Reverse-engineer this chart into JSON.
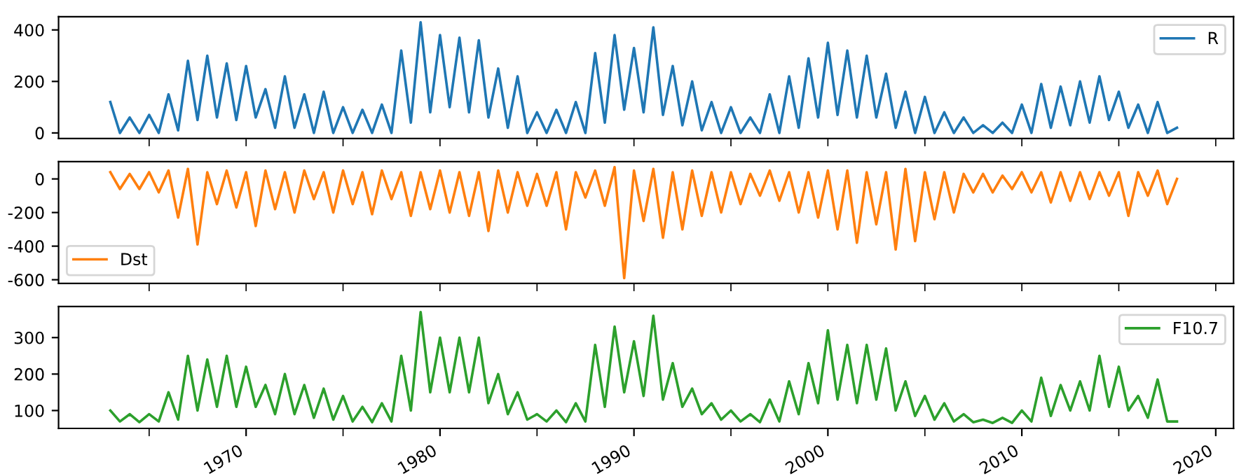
{
  "chart_data": [
    {
      "type": "line",
      "x": [
        "1963-01",
        "1963-07",
        "1964-01",
        "1964-07",
        "1965-01",
        "1965-07",
        "1966-01",
        "1966-07",
        "1967-01",
        "1967-07",
        "1968-01",
        "1968-07",
        "1969-01",
        "1969-07",
        "1970-01",
        "1970-07",
        "1971-01",
        "1971-07",
        "1972-01",
        "1972-07",
        "1973-01",
        "1973-07",
        "1974-01",
        "1974-07",
        "1975-01",
        "1975-07",
        "1976-01",
        "1976-07",
        "1977-01",
        "1977-07",
        "1978-01",
        "1978-07",
        "1979-01",
        "1979-07",
        "1980-01",
        "1980-07",
        "1981-01",
        "1981-07",
        "1982-01",
        "1982-07",
        "1983-01",
        "1983-07",
        "1984-01",
        "1984-07",
        "1985-01",
        "1985-07",
        "1986-01",
        "1986-07",
        "1987-01",
        "1987-07",
        "1988-01",
        "1988-07",
        "1989-01",
        "1989-07",
        "1990-01",
        "1990-07",
        "1991-01",
        "1991-07",
        "1992-01",
        "1992-07",
        "1993-01",
        "1993-07",
        "1994-01",
        "1994-07",
        "1995-01",
        "1995-07",
        "1996-01",
        "1996-07",
        "1997-01",
        "1997-07",
        "1998-01",
        "1998-07",
        "1999-01",
        "1999-07",
        "2000-01",
        "2000-07",
        "2001-01",
        "2001-07",
        "2002-01",
        "2002-07",
        "2003-01",
        "2003-07",
        "2004-01",
        "2004-07",
        "2005-01",
        "2005-07",
        "2006-01",
        "2006-07",
        "2007-01",
        "2007-07",
        "2008-01",
        "2008-07",
        "2009-01",
        "2009-07",
        "2010-01",
        "2010-07",
        "2011-01",
        "2011-07",
        "2012-01",
        "2012-07",
        "2013-01",
        "2013-07",
        "2014-01",
        "2014-07",
        "2015-01",
        "2015-07",
        "2016-01",
        "2016-07",
        "2017-01",
        "2017-07",
        "2018-01"
      ],
      "series": [
        {
          "name": "R",
          "color": "#1f77b4",
          "values": [
            120,
            0,
            60,
            0,
            70,
            0,
            150,
            10,
            280,
            50,
            300,
            60,
            270,
            50,
            260,
            60,
            170,
            20,
            220,
            20,
            150,
            0,
            160,
            0,
            100,
            0,
            90,
            0,
            110,
            0,
            320,
            40,
            430,
            80,
            380,
            100,
            370,
            80,
            360,
            60,
            250,
            20,
            220,
            0,
            80,
            0,
            90,
            0,
            120,
            0,
            310,
            40,
            380,
            90,
            330,
            80,
            410,
            70,
            260,
            30,
            200,
            10,
            120,
            0,
            100,
            0,
            60,
            0,
            150,
            0,
            220,
            20,
            290,
            60,
            350,
            70,
            320,
            60,
            300,
            60,
            230,
            20,
            160,
            0,
            140,
            0,
            80,
            0,
            60,
            0,
            30,
            0,
            40,
            0,
            110,
            0,
            190,
            20,
            180,
            30,
            200,
            40,
            220,
            50,
            160,
            20,
            110,
            0,
            120,
            0,
            20
          ]
        }
      ],
      "xlim": [
        "1960-05",
        "2020-12"
      ],
      "xticks": [
        {
          "value": "1965-01",
          "label": null
        },
        {
          "value": "1970-01",
          "label": null
        },
        {
          "value": "1975-01",
          "label": null
        },
        {
          "value": "1980-01",
          "label": null
        },
        {
          "value": "1985-01",
          "label": null
        },
        {
          "value": "1990-01",
          "label": null
        },
        {
          "value": "1995-01",
          "label": null
        },
        {
          "value": "2000-01",
          "label": null
        },
        {
          "value": "2005-01",
          "label": null
        },
        {
          "value": "2010-01",
          "label": null
        },
        {
          "value": "2015-01",
          "label": null
        },
        {
          "value": "2020-01",
          "label": null
        }
      ],
      "ylim": [
        -21.5,
        451.5
      ],
      "yticks": [
        0,
        200,
        400
      ],
      "legend": "top right",
      "tick_labels": "y"
    },
    {
      "type": "line",
      "x": [
        "1963-01",
        "1963-07",
        "1964-01",
        "1964-07",
        "1965-01",
        "1965-07",
        "1966-01",
        "1966-07",
        "1967-01",
        "1967-07",
        "1968-01",
        "1968-07",
        "1969-01",
        "1969-07",
        "1970-01",
        "1970-07",
        "1971-01",
        "1971-07",
        "1972-01",
        "1972-07",
        "1973-01",
        "1973-07",
        "1974-01",
        "1974-07",
        "1975-01",
        "1975-07",
        "1976-01",
        "1976-07",
        "1977-01",
        "1977-07",
        "1978-01",
        "1978-07",
        "1979-01",
        "1979-07",
        "1980-01",
        "1980-07",
        "1981-01",
        "1981-07",
        "1982-01",
        "1982-07",
        "1983-01",
        "1983-07",
        "1984-01",
        "1984-07",
        "1985-01",
        "1985-07",
        "1986-01",
        "1986-07",
        "1987-01",
        "1987-07",
        "1988-01",
        "1988-07",
        "1989-01",
        "1989-07",
        "1990-01",
        "1990-07",
        "1991-01",
        "1991-07",
        "1992-01",
        "1992-07",
        "1993-01",
        "1993-07",
        "1994-01",
        "1994-07",
        "1995-01",
        "1995-07",
        "1996-01",
        "1996-07",
        "1997-01",
        "1997-07",
        "1998-01",
        "1998-07",
        "1999-01",
        "1999-07",
        "2000-01",
        "2000-07",
        "2001-01",
        "2001-07",
        "2002-01",
        "2002-07",
        "2003-01",
        "2003-07",
        "2004-01",
        "2004-07",
        "2005-01",
        "2005-07",
        "2006-01",
        "2006-07",
        "2007-01",
        "2007-07",
        "2008-01",
        "2008-07",
        "2009-01",
        "2009-07",
        "2010-01",
        "2010-07",
        "2011-01",
        "2011-07",
        "2012-01",
        "2012-07",
        "2013-01",
        "2013-07",
        "2014-01",
        "2014-07",
        "2015-01",
        "2015-07",
        "2016-01",
        "2016-07",
        "2017-01",
        "2017-07",
        "2018-01"
      ],
      "series": [
        {
          "name": "Dst",
          "color": "#ff7f0e",
          "values": [
            40,
            -60,
            30,
            -60,
            40,
            -80,
            50,
            -230,
            60,
            -390,
            40,
            -150,
            50,
            -170,
            40,
            -280,
            50,
            -180,
            40,
            -200,
            50,
            -120,
            40,
            -200,
            50,
            -150,
            40,
            -210,
            50,
            -120,
            40,
            -220,
            40,
            -180,
            50,
            -200,
            40,
            -220,
            40,
            -310,
            50,
            -200,
            40,
            -160,
            30,
            -160,
            40,
            -300,
            40,
            -110,
            50,
            -160,
            70,
            -590,
            50,
            -250,
            60,
            -350,
            40,
            -300,
            50,
            -220,
            40,
            -200,
            40,
            -150,
            30,
            -100,
            50,
            -130,
            40,
            -200,
            40,
            -230,
            50,
            -300,
            50,
            -380,
            40,
            -270,
            40,
            -420,
            60,
            -370,
            40,
            -240,
            40,
            -200,
            30,
            -80,
            30,
            -80,
            20,
            -60,
            40,
            -80,
            40,
            -140,
            40,
            -130,
            40,
            -120,
            40,
            -100,
            40,
            -220,
            40,
            -100,
            50,
            -150,
            0
          ]
        }
      ],
      "xlim": [
        "1960-05",
        "2020-12"
      ],
      "xticks": [
        {
          "value": "1965-01",
          "label": null
        },
        {
          "value": "1970-01",
          "label": null
        },
        {
          "value": "1975-01",
          "label": null
        },
        {
          "value": "1980-01",
          "label": null
        },
        {
          "value": "1985-01",
          "label": null
        },
        {
          "value": "1990-01",
          "label": null
        },
        {
          "value": "1995-01",
          "label": null
        },
        {
          "value": "2000-01",
          "label": null
        },
        {
          "value": "2005-01",
          "label": null
        },
        {
          "value": "2010-01",
          "label": null
        },
        {
          "value": "2015-01",
          "label": null
        },
        {
          "value": "2020-01",
          "label": null
        }
      ],
      "ylim": [
        -622,
        103
      ],
      "yticks": [
        -600,
        -400,
        -200,
        0
      ],
      "legend": "bottom left",
      "tick_labels": "y"
    },
    {
      "type": "line",
      "x": [
        "1963-01",
        "1963-07",
        "1964-01",
        "1964-07",
        "1965-01",
        "1965-07",
        "1966-01",
        "1966-07",
        "1967-01",
        "1967-07",
        "1968-01",
        "1968-07",
        "1969-01",
        "1969-07",
        "1970-01",
        "1970-07",
        "1971-01",
        "1971-07",
        "1972-01",
        "1972-07",
        "1973-01",
        "1973-07",
        "1974-01",
        "1974-07",
        "1975-01",
        "1975-07",
        "1976-01",
        "1976-07",
        "1977-01",
        "1977-07",
        "1978-01",
        "1978-07",
        "1979-01",
        "1979-07",
        "1980-01",
        "1980-07",
        "1981-01",
        "1981-07",
        "1982-01",
        "1982-07",
        "1983-01",
        "1983-07",
        "1984-01",
        "1984-07",
        "1985-01",
        "1985-07",
        "1986-01",
        "1986-07",
        "1987-01",
        "1987-07",
        "1988-01",
        "1988-07",
        "1989-01",
        "1989-07",
        "1990-01",
        "1990-07",
        "1991-01",
        "1991-07",
        "1992-01",
        "1992-07",
        "1993-01",
        "1993-07",
        "1994-01",
        "1994-07",
        "1995-01",
        "1995-07",
        "1996-01",
        "1996-07",
        "1997-01",
        "1997-07",
        "1998-01",
        "1998-07",
        "1999-01",
        "1999-07",
        "2000-01",
        "2000-07",
        "2001-01",
        "2001-07",
        "2002-01",
        "2002-07",
        "2003-01",
        "2003-07",
        "2004-01",
        "2004-07",
        "2005-01",
        "2005-07",
        "2006-01",
        "2006-07",
        "2007-01",
        "2007-07",
        "2008-01",
        "2008-07",
        "2009-01",
        "2009-07",
        "2010-01",
        "2010-07",
        "2011-01",
        "2011-07",
        "2012-01",
        "2012-07",
        "2013-01",
        "2013-07",
        "2014-01",
        "2014-07",
        "2015-01",
        "2015-07",
        "2016-01",
        "2016-07",
        "2017-01",
        "2017-07",
        "2018-01"
      ],
      "series": [
        {
          "name": "F10.7",
          "color": "#2ca02c",
          "values": [
            100,
            70,
            90,
            68,
            90,
            70,
            150,
            75,
            250,
            100,
            240,
            110,
            250,
            110,
            220,
            110,
            170,
            90,
            200,
            90,
            170,
            80,
            160,
            75,
            140,
            70,
            110,
            68,
            120,
            70,
            250,
            100,
            370,
            150,
            300,
            150,
            300,
            150,
            300,
            120,
            200,
            90,
            150,
            75,
            90,
            70,
            100,
            68,
            120,
            70,
            280,
            110,
            330,
            150,
            290,
            140,
            360,
            130,
            230,
            110,
            160,
            90,
            120,
            75,
            100,
            70,
            90,
            68,
            130,
            70,
            180,
            90,
            230,
            120,
            320,
            130,
            280,
            120,
            280,
            130,
            270,
            100,
            180,
            85,
            140,
            75,
            120,
            70,
            90,
            68,
            75,
            66,
            80,
            66,
            100,
            70,
            190,
            85,
            170,
            100,
            180,
            100,
            250,
            110,
            220,
            100,
            140,
            80,
            185,
            70,
            70
          ]
        }
      ],
      "xlim": [
        "1960-05",
        "2020-12"
      ],
      "xticks": [
        {
          "value": "1965-01",
          "label": null
        },
        {
          "value": "1970-01",
          "label": "1970"
        },
        {
          "value": "1975-01",
          "label": null
        },
        {
          "value": "1980-01",
          "label": "1980"
        },
        {
          "value": "1985-01",
          "label": null
        },
        {
          "value": "1990-01",
          "label": "1990"
        },
        {
          "value": "1995-01",
          "label": null
        },
        {
          "value": "2000-01",
          "label": "2000"
        },
        {
          "value": "2005-01",
          "label": null
        },
        {
          "value": "2010-01",
          "label": "2010"
        },
        {
          "value": "2015-01",
          "label": null
        },
        {
          "value": "2020-01",
          "label": "2020"
        }
      ],
      "ylim": [
        51,
        385
      ],
      "yticks": [
        100,
        200,
        300
      ],
      "legend": "top right"
    }
  ]
}
